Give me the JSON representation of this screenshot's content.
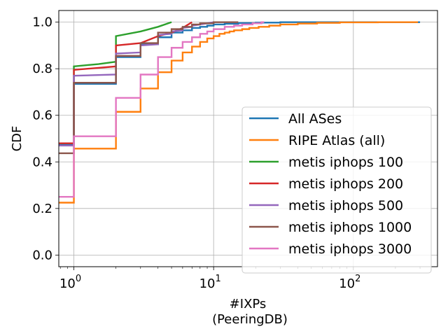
{
  "chart_data": {
    "type": "line",
    "xlabel": "#IXPs",
    "xlabel2": "(PeeringDB)",
    "ylabel": "CDF",
    "xscale": "log",
    "xlim": [
      0.78,
      400
    ],
    "ylim": [
      -0.05,
      1.05
    ],
    "grid": true,
    "legend_position": "lower-right",
    "x_ticks": [
      {
        "value": 1,
        "base": "10",
        "exp": "0"
      },
      {
        "value": 10,
        "base": "10",
        "exp": "1"
      },
      {
        "value": 100,
        "base": "10",
        "exp": "2"
      }
    ],
    "y_ticks": [
      {
        "value": 0.0,
        "label": "0.0"
      },
      {
        "value": 0.2,
        "label": "0.2"
      },
      {
        "value": 0.4,
        "label": "0.4"
      },
      {
        "value": 0.6,
        "label": "0.6"
      },
      {
        "value": 0.8,
        "label": "0.8"
      },
      {
        "value": 1.0,
        "label": "1.0"
      }
    ],
    "series": [
      {
        "name": "All ASes",
        "color": "#1f77b4",
        "points": [
          [
            0.78,
            0.475
          ],
          [
            1,
            0.475
          ],
          [
            1,
            0.735
          ],
          [
            2,
            0.735
          ],
          [
            2,
            0.85
          ],
          [
            3,
            0.85
          ],
          [
            3,
            0.905
          ],
          [
            4,
            0.905
          ],
          [
            4,
            0.935
          ],
          [
            5,
            0.935
          ],
          [
            5,
            0.955
          ],
          [
            6,
            0.955
          ],
          [
            6,
            0.965
          ],
          [
            7,
            0.965
          ],
          [
            7,
            0.975
          ],
          [
            8,
            0.975
          ],
          [
            8,
            0.98
          ],
          [
            9,
            0.98
          ],
          [
            9,
            0.985
          ],
          [
            10,
            0.985
          ],
          [
            10,
            0.99
          ],
          [
            12,
            0.99
          ],
          [
            12,
            0.993
          ],
          [
            15,
            0.993
          ],
          [
            15,
            0.996
          ],
          [
            20,
            0.996
          ],
          [
            20,
            0.998
          ],
          [
            30,
            0.998
          ],
          [
            30,
            1.0
          ],
          [
            300,
            1.0
          ]
        ]
      },
      {
        "name": "RIPE Atlas (all)",
        "color": "#ff7f0e",
        "points": [
          [
            0.78,
            0.225
          ],
          [
            1,
            0.225
          ],
          [
            1,
            0.457
          ],
          [
            2,
            0.457
          ],
          [
            2,
            0.615
          ],
          [
            3,
            0.615
          ],
          [
            3,
            0.715
          ],
          [
            4,
            0.715
          ],
          [
            4,
            0.785
          ],
          [
            5,
            0.785
          ],
          [
            5,
            0.835
          ],
          [
            6,
            0.835
          ],
          [
            6,
            0.87
          ],
          [
            7,
            0.87
          ],
          [
            7,
            0.895
          ],
          [
            8,
            0.895
          ],
          [
            8,
            0.915
          ],
          [
            9,
            0.915
          ],
          [
            9,
            0.93
          ],
          [
            10,
            0.93
          ],
          [
            10,
            0.94
          ],
          [
            11,
            0.94
          ],
          [
            11,
            0.95
          ],
          [
            12,
            0.95
          ],
          [
            12,
            0.955
          ],
          [
            13,
            0.955
          ],
          [
            13,
            0.96
          ],
          [
            14,
            0.96
          ],
          [
            14,
            0.965
          ],
          [
            16,
            0.965
          ],
          [
            16,
            0.97
          ],
          [
            18,
            0.97
          ],
          [
            18,
            0.975
          ],
          [
            21,
            0.975
          ],
          [
            21,
            0.98
          ],
          [
            25,
            0.98
          ],
          [
            25,
            0.985
          ],
          [
            30,
            0.985
          ],
          [
            30,
            0.99
          ],
          [
            40,
            0.99
          ],
          [
            40,
            0.994
          ],
          [
            55,
            0.994
          ],
          [
            55,
            0.997
          ],
          [
            80,
            0.997
          ],
          [
            80,
            0.999
          ],
          [
            150,
            0.999
          ],
          [
            150,
            1.0
          ],
          [
            290,
            1.0
          ]
        ]
      },
      {
        "name": "metis iphops 100",
        "color": "#2ca02c",
        "points": [
          [
            0.78,
            0.48
          ],
          [
            1,
            0.48
          ],
          [
            1,
            0.81
          ],
          [
            1.5,
            0.82
          ],
          [
            2,
            0.83
          ],
          [
            2,
            0.94
          ],
          [
            3,
            0.96
          ],
          [
            4,
            0.98
          ],
          [
            5,
            1.0
          ]
        ]
      },
      {
        "name": "metis iphops 200",
        "color": "#d62728",
        "points": [
          [
            0.78,
            0.48
          ],
          [
            1,
            0.48
          ],
          [
            1,
            0.795
          ],
          [
            2,
            0.81
          ],
          [
            2,
            0.9
          ],
          [
            3,
            0.91
          ],
          [
            4,
            0.94
          ],
          [
            5,
            0.955
          ],
          [
            6,
            0.975
          ],
          [
            7,
            1.0
          ]
        ]
      },
      {
        "name": "metis iphops 500",
        "color": "#9467bd",
        "points": [
          [
            0.78,
            0.47
          ],
          [
            1,
            0.47
          ],
          [
            1,
            0.77
          ],
          [
            2,
            0.775
          ],
          [
            2,
            0.865
          ],
          [
            3,
            0.87
          ],
          [
            3,
            0.9
          ],
          [
            4,
            0.905
          ],
          [
            4,
            0.945
          ],
          [
            5,
            0.95
          ],
          [
            5,
            0.96
          ],
          [
            6,
            0.965
          ],
          [
            6,
            0.975
          ],
          [
            7,
            0.98
          ],
          [
            7,
            0.985
          ],
          [
            8,
            0.99
          ],
          [
            9,
            0.995
          ],
          [
            10,
            1.0
          ]
        ]
      },
      {
        "name": "metis iphops 1000",
        "color": "#8c564b",
        "points": [
          [
            0.78,
            0.437
          ],
          [
            1,
            0.437
          ],
          [
            1,
            0.74
          ],
          [
            2,
            0.74
          ],
          [
            2,
            0.855
          ],
          [
            3,
            0.855
          ],
          [
            3,
            0.91
          ],
          [
            4,
            0.91
          ],
          [
            4,
            0.955
          ],
          [
            5,
            0.955
          ],
          [
            5,
            0.97
          ],
          [
            6,
            0.97
          ],
          [
            6,
            0.98
          ],
          [
            7,
            0.98
          ],
          [
            7,
            0.99
          ],
          [
            8,
            0.99
          ],
          [
            8,
            0.995
          ],
          [
            10,
            0.995
          ],
          [
            10,
            1.0
          ],
          [
            15,
            1.0
          ]
        ]
      },
      {
        "name": "metis iphops 3000",
        "color": "#e377c2",
        "points": [
          [
            0.78,
            0.25
          ],
          [
            1,
            0.25
          ],
          [
            1,
            0.51
          ],
          [
            2,
            0.51
          ],
          [
            2,
            0.675
          ],
          [
            3,
            0.675
          ],
          [
            3,
            0.775
          ],
          [
            4,
            0.775
          ],
          [
            4,
            0.85
          ],
          [
            5,
            0.85
          ],
          [
            5,
            0.89
          ],
          [
            6,
            0.89
          ],
          [
            6,
            0.915
          ],
          [
            7,
            0.915
          ],
          [
            7,
            0.935
          ],
          [
            8,
            0.935
          ],
          [
            8,
            0.95
          ],
          [
            9,
            0.95
          ],
          [
            9,
            0.96
          ],
          [
            10,
            0.96
          ],
          [
            10,
            0.97
          ],
          [
            12,
            0.97
          ],
          [
            12,
            0.98
          ],
          [
            14,
            0.98
          ],
          [
            14,
            0.985
          ],
          [
            16,
            0.985
          ],
          [
            16,
            0.99
          ],
          [
            19,
            0.99
          ],
          [
            19,
            0.995
          ],
          [
            22,
            0.995
          ],
          [
            22,
            1.0
          ],
          [
            23,
            1.0
          ]
        ]
      }
    ]
  }
}
